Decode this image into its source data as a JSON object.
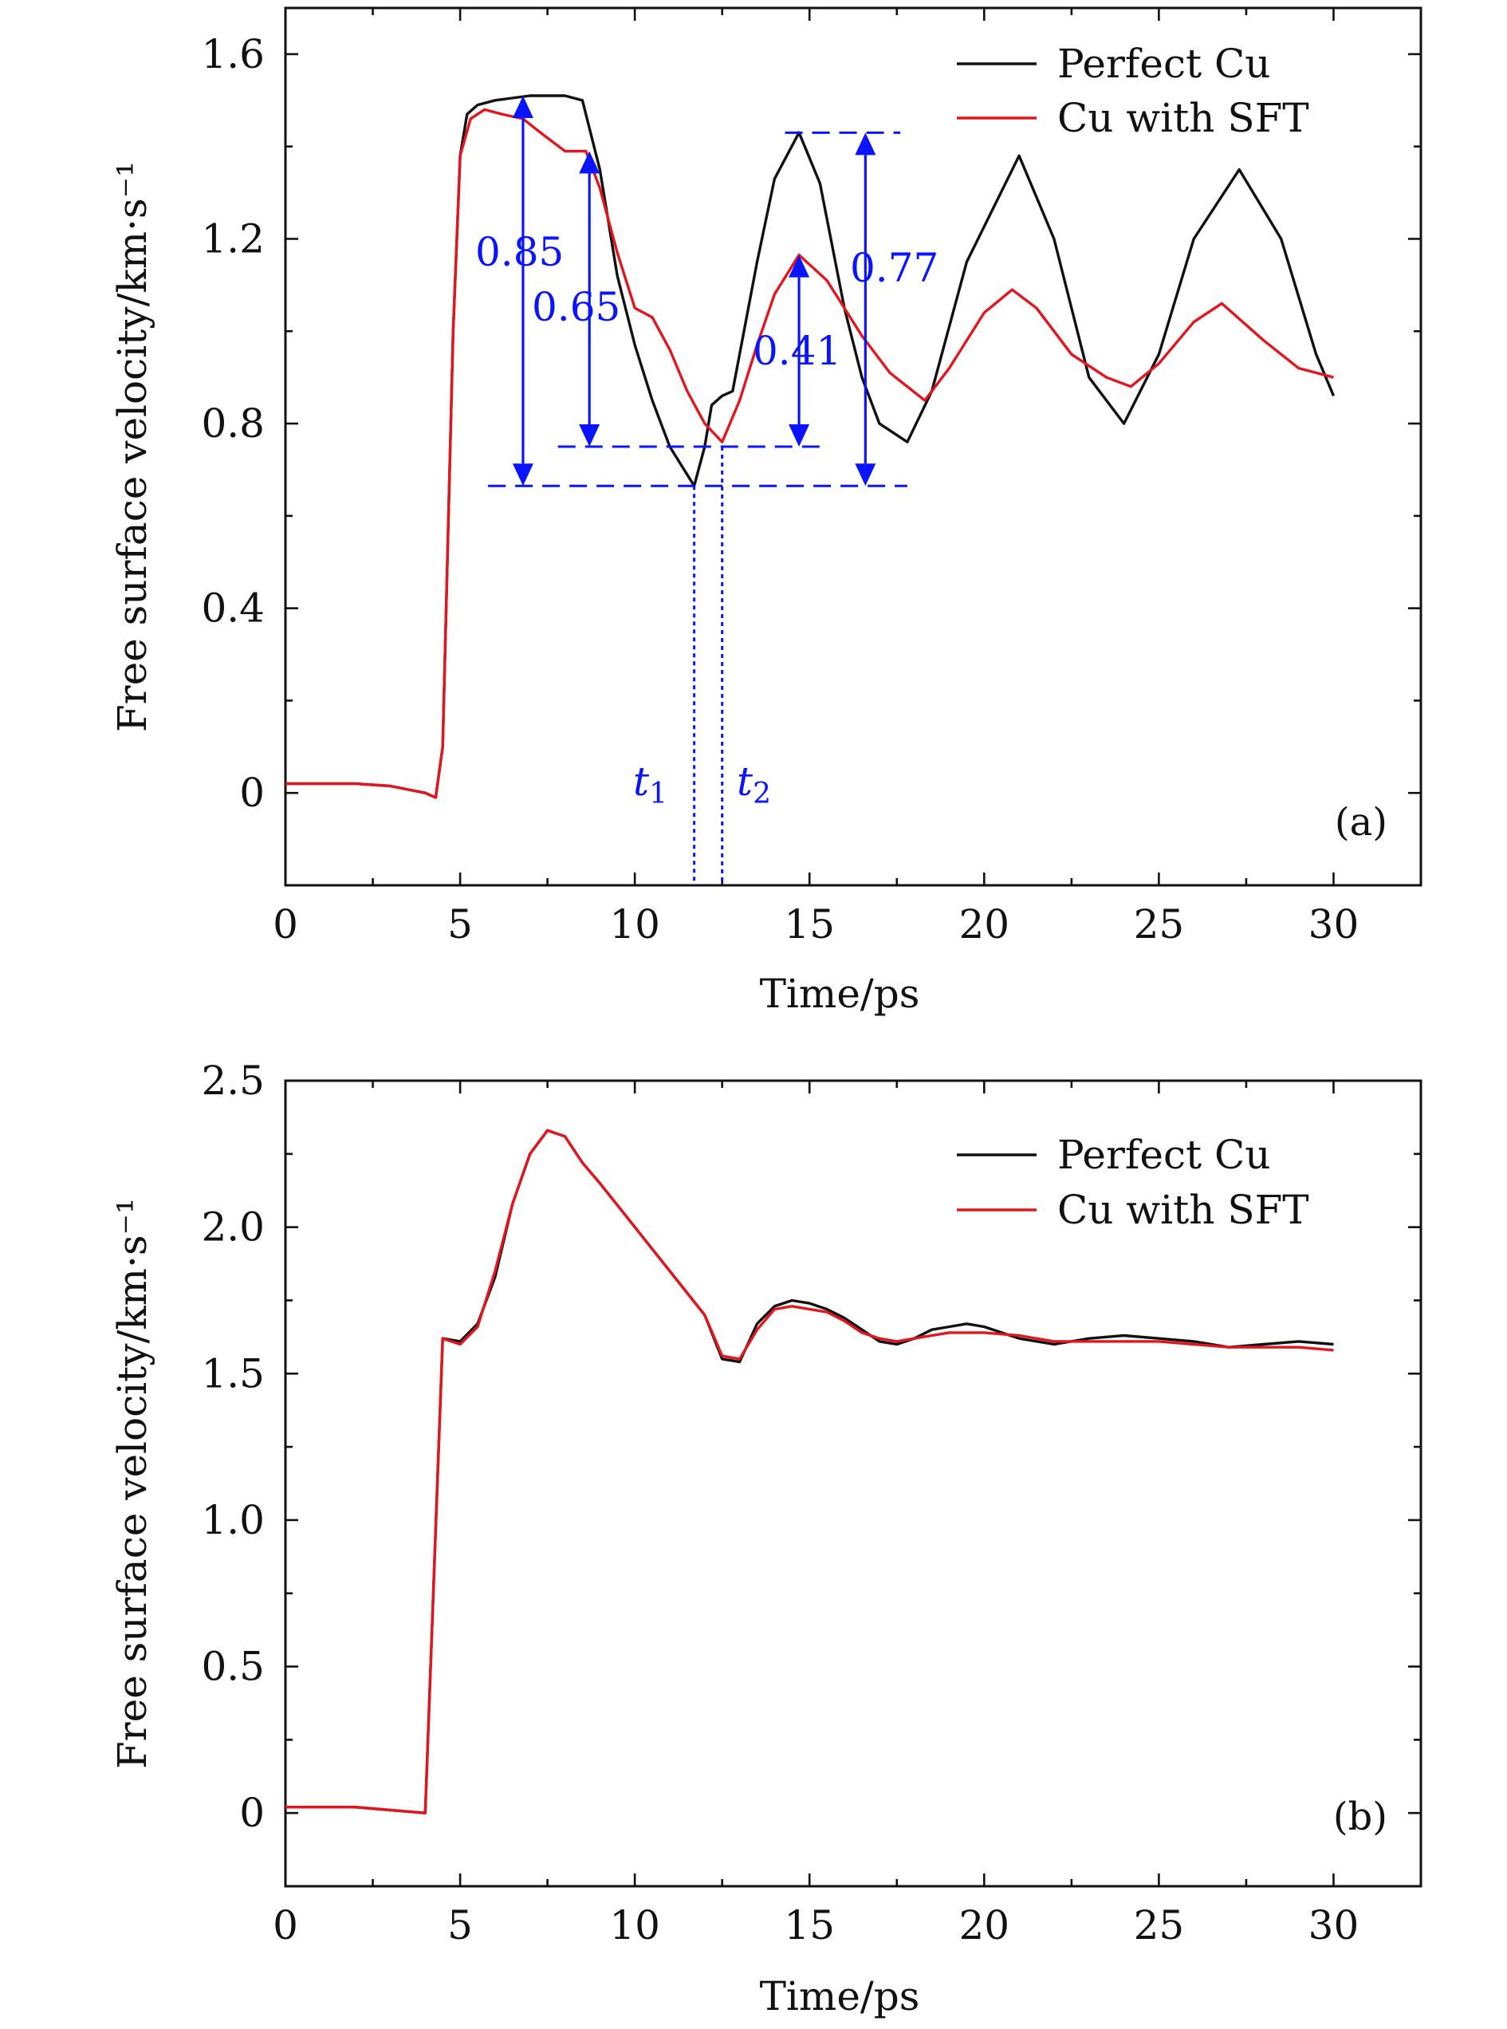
{
  "chart_data": [
    {
      "type": "line",
      "panel_label": "(a)",
      "xlabel": "Time/ps",
      "ylabel": "Free surface velocity/km·s⁻¹",
      "xlim": [
        0,
        32.5
      ],
      "ylim": [
        -0.2,
        1.7
      ],
      "xticks": [
        0,
        5,
        10,
        15,
        20,
        25,
        30
      ],
      "xticklabels": [
        "0",
        "5",
        "10",
        "15",
        "20",
        "25",
        "30"
      ],
      "yticks": [
        0,
        0.4,
        0.8,
        1.2,
        1.6
      ],
      "yticklabels": [
        "0",
        "0.4",
        "0.8",
        "1.2",
        "1.6"
      ],
      "legend": {
        "position": "top-right"
      },
      "series": [
        {
          "name": "Perfect Cu",
          "color": "#111111",
          "x": [
            0,
            1,
            2,
            3,
            4,
            4.3,
            4.5,
            4.8,
            5.0,
            5.2,
            5.5,
            6.0,
            7.0,
            8.0,
            8.5,
            9.0,
            9.5,
            10.0,
            10.5,
            11.0,
            11.7,
            12.0,
            12.2,
            12.5,
            12.8,
            13.5,
            14.0,
            14.7,
            15.3,
            16.0,
            16.5,
            17.0,
            17.8,
            18.5,
            19.5,
            21.0,
            22.0,
            23.0,
            24.0,
            25.0,
            26.0,
            27.3,
            28.5,
            29.5,
            30.0
          ],
          "y": [
            0.02,
            0.02,
            0.02,
            0.015,
            0.0,
            -0.01,
            0.1,
            1.0,
            1.38,
            1.47,
            1.49,
            1.5,
            1.51,
            1.51,
            1.5,
            1.35,
            1.12,
            0.97,
            0.85,
            0.75,
            0.665,
            0.75,
            0.84,
            0.86,
            0.87,
            1.15,
            1.33,
            1.43,
            1.32,
            1.05,
            0.9,
            0.8,
            0.76,
            0.87,
            1.15,
            1.38,
            1.2,
            0.9,
            0.8,
            0.95,
            1.2,
            1.35,
            1.2,
            0.95,
            0.86
          ]
        },
        {
          "name": "Cu with SFT",
          "color": "#e3161f",
          "x": [
            0,
            1,
            2,
            3,
            4,
            4.3,
            4.5,
            4.8,
            5.0,
            5.3,
            5.7,
            6.2,
            6.8,
            7.3,
            8.0,
            8.6,
            9.0,
            9.5,
            10.0,
            10.5,
            11.0,
            11.5,
            12.0,
            12.5,
            13.0,
            13.5,
            14.0,
            14.7,
            15.5,
            16.5,
            17.3,
            18.3,
            19.0,
            20.0,
            20.8,
            21.5,
            22.5,
            23.5,
            24.2,
            25.0,
            26.0,
            26.8,
            28.0,
            29.0,
            30.0
          ],
          "y": [
            0.02,
            0.02,
            0.02,
            0.015,
            0.0,
            -0.01,
            0.1,
            1.0,
            1.38,
            1.46,
            1.48,
            1.47,
            1.46,
            1.43,
            1.39,
            1.39,
            1.31,
            1.17,
            1.05,
            1.03,
            0.96,
            0.87,
            0.8,
            0.76,
            0.85,
            0.97,
            1.08,
            1.165,
            1.11,
            0.99,
            0.91,
            0.85,
            0.92,
            1.04,
            1.09,
            1.05,
            0.95,
            0.9,
            0.88,
            0.93,
            1.02,
            1.06,
            0.98,
            0.92,
            0.9
          ]
        }
      ],
      "annotations": {
        "color": "#0a14ff",
        "labels": [
          "0.85",
          "0.65",
          "0.41",
          "0.77"
        ],
        "t1_label": "t",
        "t1_sub": "1",
        "t2_label": "t",
        "t2_sub": "2",
        "t1": 11.7,
        "t2": 12.5,
        "arrows": [
          {
            "x": 6.8,
            "y_from": 0.665,
            "y_to": 1.51
          },
          {
            "x": 8.7,
            "y_from": 0.75,
            "y_to": 1.39
          },
          {
            "x": 14.7,
            "y_from": 0.75,
            "y_to": 1.165
          },
          {
            "x": 16.6,
            "y_from": 0.665,
            "y_to": 1.43
          }
        ],
        "dashed_levels": [
          {
            "y": 0.665,
            "x_from": 5.8,
            "x_to": 17.8
          },
          {
            "y": 0.75,
            "x_from": 7.8,
            "x_to": 15.5
          },
          {
            "y": 1.43,
            "x_from": 14.3,
            "x_to": 17.6
          }
        ]
      }
    },
    {
      "type": "line",
      "panel_label": "(b)",
      "xlabel": "Time/ps",
      "ylabel": "Free surface velocity/km·s⁻¹",
      "xlim": [
        0,
        32.5
      ],
      "ylim": [
        -0.25,
        2.5
      ],
      "xticks": [
        0,
        5,
        10,
        15,
        20,
        25,
        30
      ],
      "xticklabels": [
        "0",
        "5",
        "10",
        "15",
        "20",
        "25",
        "30"
      ],
      "yticks": [
        0,
        0.5,
        1.0,
        1.5,
        2.0,
        2.5
      ],
      "yticklabels": [
        "0",
        "0.5",
        "1.0",
        "1.5",
        "2.0",
        "2.5"
      ],
      "legend": {
        "position": "top-right"
      },
      "series": [
        {
          "name": "Perfect Cu",
          "color": "#111111",
          "x": [
            0,
            1,
            2,
            3,
            4,
            4.5,
            5.0,
            5.5,
            6.0,
            6.5,
            7.0,
            7.5,
            8.0,
            8.5,
            9.0,
            10.0,
            11.0,
            12.0,
            12.5,
            13.0,
            13.5,
            14.0,
            14.5,
            15.0,
            15.5,
            16.0,
            16.5,
            17.0,
            17.5,
            18.0,
            18.5,
            19.0,
            19.5,
            20.0,
            21.0,
            22.0,
            23.0,
            24.0,
            25.0,
            26.0,
            27.0,
            28.0,
            29.0,
            30.0
          ],
          "y": [
            0.02,
            0.02,
            0.02,
            0.01,
            0.0,
            1.62,
            1.61,
            1.67,
            1.83,
            2.08,
            2.25,
            2.33,
            2.31,
            2.22,
            2.15,
            2.0,
            1.85,
            1.7,
            1.55,
            1.54,
            1.67,
            1.73,
            1.75,
            1.74,
            1.72,
            1.69,
            1.65,
            1.61,
            1.6,
            1.62,
            1.65,
            1.66,
            1.67,
            1.66,
            1.62,
            1.6,
            1.62,
            1.63,
            1.62,
            1.61,
            1.59,
            1.6,
            1.61,
            1.6
          ]
        },
        {
          "name": "Cu with SFT",
          "color": "#e3161f",
          "x": [
            0,
            1,
            2,
            3,
            4,
            4.5,
            5.0,
            5.5,
            6.0,
            6.5,
            7.0,
            7.5,
            8.0,
            8.5,
            9.0,
            10.0,
            11.0,
            12.0,
            12.5,
            13.0,
            13.5,
            14.0,
            14.5,
            15.0,
            15.5,
            16.0,
            16.5,
            17.0,
            17.5,
            18.0,
            18.5,
            19.0,
            19.5,
            20.0,
            21.0,
            22.0,
            23.0,
            24.0,
            25.0,
            26.0,
            27.0,
            28.0,
            29.0,
            30.0
          ],
          "y": [
            0.02,
            0.02,
            0.02,
            0.01,
            0.0,
            1.62,
            1.6,
            1.66,
            1.85,
            2.08,
            2.25,
            2.33,
            2.31,
            2.22,
            2.15,
            2.0,
            1.85,
            1.7,
            1.56,
            1.55,
            1.65,
            1.72,
            1.73,
            1.72,
            1.71,
            1.68,
            1.64,
            1.62,
            1.61,
            1.62,
            1.63,
            1.64,
            1.64,
            1.64,
            1.63,
            1.61,
            1.61,
            1.61,
            1.61,
            1.6,
            1.59,
            1.59,
            1.59,
            1.58
          ]
        }
      ]
    }
  ]
}
